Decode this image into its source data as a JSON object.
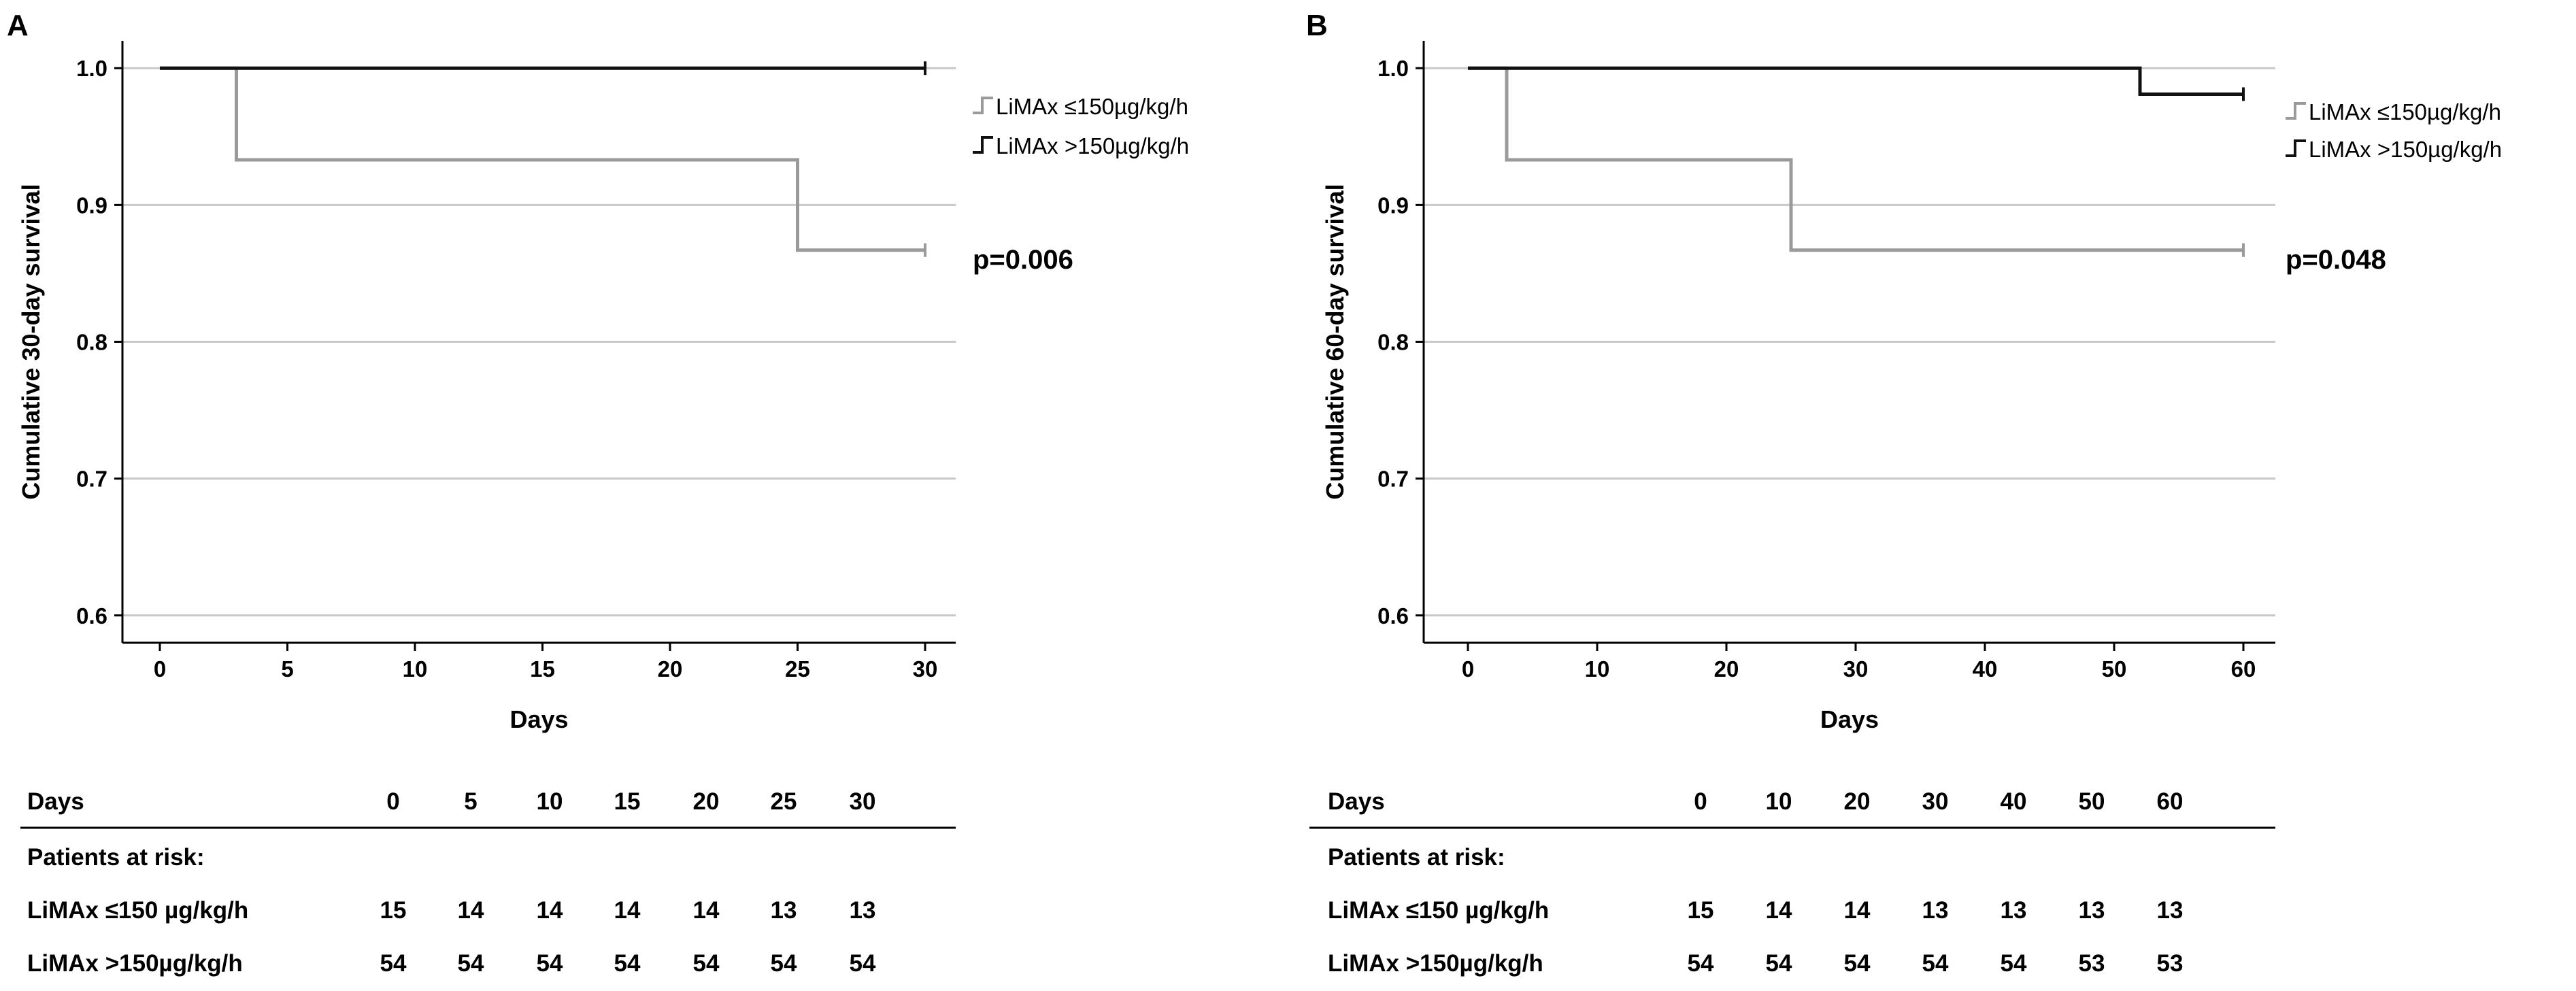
{
  "chart_data": [
    {
      "type": "kaplan-meier",
      "panel": "A",
      "xlabel": "Days",
      "ylabel": "Cumulative 30-day survival",
      "xlim": [
        0,
        30
      ],
      "ylim": [
        0.58,
        1.02
      ],
      "xticks": [
        0,
        5,
        10,
        15,
        20,
        25,
        30
      ],
      "yticks": [
        0.6,
        0.7,
        0.8,
        0.9,
        1.0
      ],
      "ytick_labels": [
        "0.6",
        "0.7",
        "0.8",
        "0.9",
        "1.0"
      ],
      "grid": true,
      "legend_position": "right",
      "annotation": "p=0.006",
      "series": [
        {
          "name": "LiMAx ≤150µg/kg/h",
          "color": "#9a9a9a",
          "steps": [
            [
              0,
              1.0
            ],
            [
              3,
              0.933
            ],
            [
              25,
              0.867
            ],
            [
              30,
              0.867
            ]
          ]
        },
        {
          "name": "LiMAx >150µg/kg/h",
          "color": "#111111",
          "steps": [
            [
              0,
              1.0
            ],
            [
              30,
              1.0
            ]
          ]
        }
      ],
      "risk_table": {
        "header": "Days",
        "days": [
          "0",
          "5",
          "10",
          "15",
          "20",
          "25",
          "30"
        ],
        "subheader": "Patients at risk:",
        "rows": [
          {
            "label": "LiMAx ≤150 µg/kg/h",
            "values": [
              "15",
              "14",
              "14",
              "14",
              "14",
              "13",
              "13"
            ]
          },
          {
            "label": "LiMAx >150µg/kg/h",
            "values": [
              "54",
              "54",
              "54",
              "54",
              "54",
              "54",
              "54"
            ]
          }
        ]
      }
    },
    {
      "type": "kaplan-meier",
      "panel": "B",
      "xlabel": "Days",
      "ylabel": "Cumulative 60-day survival",
      "xlim": [
        0,
        60
      ],
      "ylim": [
        0.58,
        1.02
      ],
      "xticks": [
        0,
        10,
        20,
        30,
        40,
        50,
        60
      ],
      "yticks": [
        0.6,
        0.7,
        0.8,
        0.9,
        1.0
      ],
      "ytick_labels": [
        "0.6",
        "0.7",
        "0.8",
        "0.9",
        "1.0"
      ],
      "grid": true,
      "legend_position": "right",
      "annotation": "p=0.048",
      "series": [
        {
          "name": "LiMAx ≤150µg/kg/h",
          "color": "#9a9a9a",
          "steps": [
            [
              0,
              1.0
            ],
            [
              3,
              0.933
            ],
            [
              25,
              0.867
            ],
            [
              60,
              0.867
            ]
          ]
        },
        {
          "name": "LiMAx >150µg/kg/h",
          "color": "#111111",
          "steps": [
            [
              0,
              1.0
            ],
            [
              52,
              0.981
            ],
            [
              60,
              0.981
            ]
          ]
        }
      ],
      "risk_table": {
        "header": "Days",
        "days": [
          "0",
          "10",
          "20",
          "30",
          "40",
          "50",
          "60"
        ],
        "subheader": "Patients at risk:",
        "rows": [
          {
            "label": "LiMAx ≤150 µg/kg/h",
            "values": [
              "15",
              "14",
              "14",
              "13",
              "13",
              "13",
              "13"
            ]
          },
          {
            "label": "LiMAx >150µg/kg/h",
            "values": [
              "54",
              "54",
              "54",
              "54",
              "54",
              "53",
              "53"
            ]
          }
        ]
      }
    }
  ]
}
